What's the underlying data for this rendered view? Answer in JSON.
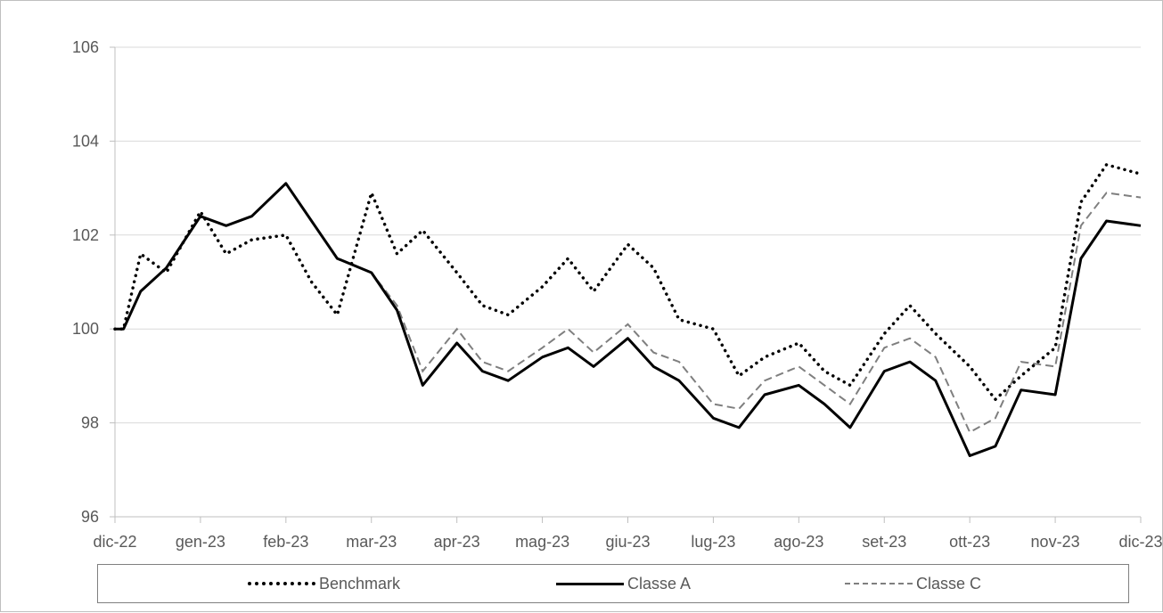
{
  "chart_data": {
    "type": "line",
    "title": "",
    "xlabel": "",
    "ylabel": "",
    "ylim": [
      96,
      106
    ],
    "yticks": [
      "96",
      "98",
      "100",
      "102",
      "104",
      "106"
    ],
    "categories": [
      "dic-22",
      "gen-23",
      "feb-23",
      "mar-23",
      "apr-23",
      "mag-23",
      "giu-23",
      "lug-23",
      "ago-23",
      "set-23",
      "ott-23",
      "nov-23",
      "dic-23"
    ],
    "grid": true,
    "legend_position": "bottom",
    "x": [
      0,
      0.1,
      0.3,
      0.6,
      1.0,
      1.3,
      1.6,
      2.0,
      2.3,
      2.6,
      3.0,
      3.3,
      3.6,
      4.0,
      4.3,
      4.6,
      5.0,
      5.3,
      5.6,
      6.0,
      6.3,
      6.6,
      7.0,
      7.3,
      7.6,
      8.0,
      8.3,
      8.6,
      9.0,
      9.3,
      9.6,
      10.0,
      10.3,
      10.6,
      11.0,
      11.3,
      11.6,
      12.0
    ],
    "series": [
      {
        "name": "Benchmark",
        "color": "#000000",
        "style": "dotted",
        "values": [
          100.0,
          100.0,
          101.6,
          101.2,
          102.5,
          101.6,
          101.9,
          102.0,
          101.0,
          100.3,
          102.9,
          101.6,
          102.1,
          101.2,
          100.5,
          100.3,
          100.9,
          101.5,
          100.8,
          101.8,
          101.3,
          100.2,
          100.0,
          99.0,
          99.4,
          99.7,
          99.1,
          98.8,
          99.9,
          100.5,
          99.9,
          99.2,
          98.5,
          99.0,
          99.6,
          102.7,
          103.5,
          103.3
        ]
      },
      {
        "name": "Classe A",
        "color": "#000000",
        "style": "solid",
        "values": [
          100.0,
          100.0,
          100.8,
          101.3,
          102.4,
          102.2,
          102.4,
          103.1,
          102.3,
          101.5,
          101.2,
          100.4,
          98.8,
          99.7,
          99.1,
          98.9,
          99.4,
          99.6,
          99.2,
          99.8,
          99.2,
          98.9,
          98.1,
          97.9,
          98.6,
          98.8,
          98.4,
          97.9,
          99.1,
          99.3,
          98.9,
          97.3,
          97.5,
          98.7,
          98.6,
          101.5,
          102.3,
          102.2
        ]
      },
      {
        "name": "Classe C",
        "color": "#7f7f7f",
        "style": "dashed",
        "values": [
          100.0,
          100.0,
          100.8,
          101.3,
          102.4,
          102.2,
          102.4,
          103.1,
          102.3,
          101.5,
          101.2,
          100.5,
          99.1,
          100.0,
          99.3,
          99.1,
          99.6,
          100.0,
          99.5,
          100.1,
          99.5,
          99.3,
          98.4,
          98.3,
          98.9,
          99.2,
          98.8,
          98.4,
          99.6,
          99.8,
          99.4,
          97.8,
          98.1,
          99.3,
          99.2,
          102.2,
          102.9,
          102.8
        ]
      }
    ]
  }
}
